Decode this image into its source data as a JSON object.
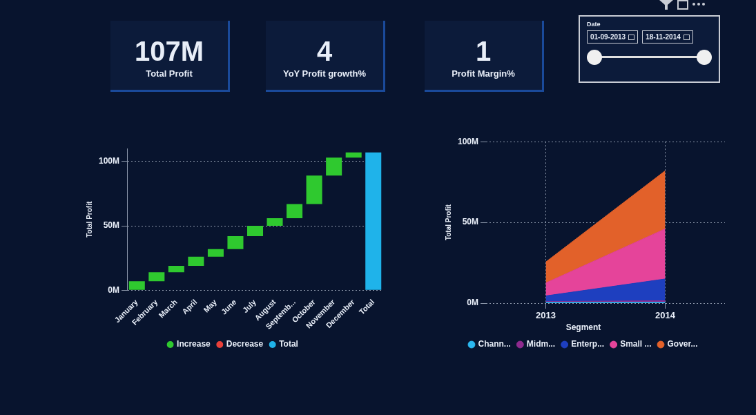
{
  "chart_data": [
    {
      "type": "other",
      "title": "Total Profit",
      "annotations": [
        "107M"
      ]
    },
    {
      "type": "other",
      "title": "YoY Profit growth%",
      "annotations": [
        "4"
      ]
    },
    {
      "type": "other",
      "title": "Profit Margin%",
      "annotations": [
        "1"
      ]
    },
    {
      "type": "other",
      "title": "Date",
      "annotations": [
        "01-09-2013",
        "18-11-2014"
      ]
    },
    {
      "type": "bar",
      "ylabel": "Total Profit",
      "categories": [
        "January",
        "February",
        "March",
        "April",
        "May",
        "June",
        "July",
        "August",
        "Septemb...",
        "October",
        "November",
        "December",
        "Total"
      ],
      "series": [
        {
          "name": "Increase",
          "color": "#2fc92f",
          "base": [
            0,
            7,
            14,
            19,
            26,
            32,
            42,
            50,
            56,
            67,
            89,
            103,
            null
          ],
          "values": [
            7,
            7,
            5,
            7,
            6,
            10,
            8,
            6,
            11,
            22,
            14,
            4,
            null
          ]
        },
        {
          "name": "Decrease",
          "color": "#e8403a",
          "values": [
            null,
            null,
            null,
            null,
            null,
            null,
            null,
            null,
            null,
            null,
            null,
            null,
            null
          ]
        },
        {
          "name": "Total",
          "color": "#1fb3ea",
          "base": [
            null,
            null,
            null,
            null,
            null,
            null,
            null,
            null,
            null,
            null,
            null,
            null,
            0
          ],
          "values": [
            null,
            null,
            null,
            null,
            null,
            null,
            null,
            null,
            null,
            null,
            null,
            null,
            107
          ]
        }
      ],
      "ylim": [
        0,
        110
      ],
      "yticks": [
        {
          "value": 0,
          "label": "0M"
        },
        {
          "value": 50,
          "label": "50M"
        },
        {
          "value": 100,
          "label": "100M"
        }
      ],
      "grid": "y",
      "legend": "bottom"
    },
    {
      "type": "area",
      "stacked": true,
      "ylabel": "Total Profit",
      "legend_title": "Segment",
      "categories": [
        "2013",
        "2014"
      ],
      "series": [
        {
          "name": "Chann...",
          "color": "#2bb8f0",
          "values": [
            0.5,
            0.5
          ]
        },
        {
          "name": "Midm...",
          "color": "#8e2a8e",
          "values": [
            0.5,
            1
          ]
        },
        {
          "name": "Enterp...",
          "color": "#1e3fbf",
          "values": [
            3.5,
            13.5
          ]
        },
        {
          "name": "Small ...",
          "color": "#e5449a",
          "values": [
            8,
            31
          ]
        },
        {
          "name": "Gover...",
          "color": "#e2612a",
          "values": [
            13,
            36
          ]
        }
      ],
      "ylim": [
        0,
        100
      ],
      "yticks": [
        {
          "value": 0,
          "label": "0M"
        },
        {
          "value": 50,
          "label": "50M"
        },
        {
          "value": 100,
          "label": "100M"
        }
      ],
      "grid": true,
      "legend": "bottom"
    }
  ]
}
